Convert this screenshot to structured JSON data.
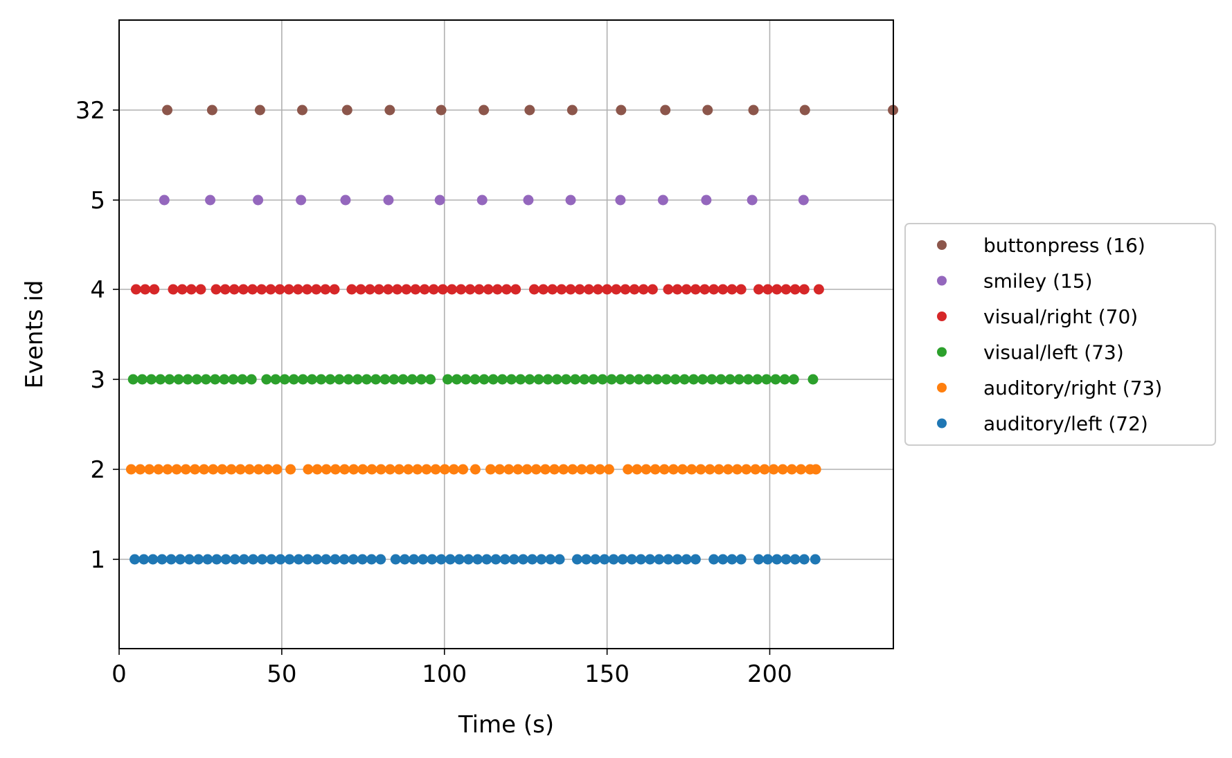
{
  "chart_data": {
    "type": "scatter",
    "title": "",
    "xlabel": "Time (s)",
    "ylabel": "Events id",
    "xlim": [
      0,
      238
    ],
    "xticks": [
      "0",
      "50",
      "100",
      "150",
      "200"
    ],
    "xtick_values": [
      0,
      50,
      100,
      150,
      200
    ],
    "ylevels": [
      "1",
      "2",
      "3",
      "4",
      "5",
      "32"
    ],
    "grid": true,
    "legend": {
      "placement": "right, outside plot"
    },
    "series": [
      {
        "name": "buttonpress (16)",
        "event_id": "32",
        "color": "#8c564b",
        "x": [
          14.8,
          28.6,
          43.3,
          56.3,
          70.1,
          83.2,
          99.0,
          112.1,
          126.2,
          139.3,
          154.3,
          167.9,
          180.9,
          195.0,
          210.8,
          237.9
        ]
      },
      {
        "name": "smiley (15)",
        "event_id": "5",
        "color": "#9467bd",
        "x": [
          13.9,
          28.0,
          42.7,
          55.9,
          69.6,
          82.8,
          98.6,
          111.6,
          125.8,
          138.8,
          154.1,
          167.2,
          180.5,
          194.6,
          210.4
        ]
      },
      {
        "name": "visual/right (70)",
        "event_id": "4",
        "color": "#d62728",
        "x": [
          5.2,
          8.0,
          10.8,
          16.6,
          19.4,
          22.2,
          25.1,
          29.8,
          32.6,
          35.4,
          38.2,
          41.0,
          43.8,
          46.6,
          49.4,
          52.2,
          55.0,
          57.8,
          60.6,
          63.4,
          66.2,
          71.5,
          74.3,
          77.1,
          79.9,
          82.7,
          85.5,
          88.3,
          91.1,
          93.9,
          96.7,
          99.5,
          102.3,
          105.1,
          107.9,
          110.7,
          113.5,
          116.3,
          119.1,
          121.9,
          127.6,
          130.4,
          133.2,
          136.0,
          138.8,
          141.6,
          144.4,
          147.2,
          150.0,
          152.8,
          155.6,
          158.4,
          161.2,
          164.0,
          168.8,
          171.6,
          174.4,
          177.2,
          180.0,
          182.8,
          185.6,
          188.4,
          191.2,
          196.6,
          199.4,
          202.2,
          205.0,
          207.8,
          210.6,
          215.1
        ]
      },
      {
        "name": "visual/left (73)",
        "event_id": "3",
        "color": "#2ca02c",
        "x": [
          4.3,
          7.1,
          9.9,
          12.7,
          15.5,
          18.3,
          21.1,
          23.9,
          26.7,
          29.5,
          32.3,
          35.1,
          37.9,
          40.7,
          45.3,
          48.1,
          50.9,
          53.7,
          56.5,
          59.3,
          62.1,
          64.9,
          67.7,
          70.5,
          73.3,
          76.1,
          78.9,
          81.7,
          84.5,
          87.3,
          90.1,
          92.9,
          95.7,
          101.0,
          103.8,
          106.6,
          109.4,
          112.2,
          115.0,
          117.8,
          120.6,
          123.4,
          126.2,
          129.0,
          131.8,
          134.6,
          137.4,
          140.2,
          143.0,
          145.8,
          148.6,
          151.4,
          154.2,
          157.0,
          159.8,
          162.6,
          165.4,
          168.2,
          171.0,
          173.8,
          176.6,
          179.4,
          182.2,
          185.0,
          187.8,
          190.6,
          193.4,
          196.2,
          199.0,
          201.8,
          204.6,
          207.4,
          213.3
        ]
      },
      {
        "name": "auditory/right (73)",
        "event_id": "2",
        "color": "#ff7f0e",
        "x": [
          3.7,
          6.5,
          9.3,
          12.1,
          14.9,
          17.7,
          20.5,
          23.3,
          26.1,
          28.9,
          31.7,
          34.5,
          37.3,
          40.1,
          42.9,
          45.7,
          48.5,
          52.7,
          58.1,
          60.9,
          63.7,
          66.5,
          69.3,
          72.1,
          74.9,
          77.7,
          80.5,
          83.3,
          86.1,
          88.9,
          91.7,
          94.5,
          97.3,
          100.1,
          102.9,
          105.7,
          109.5,
          114.2,
          117.0,
          119.8,
          122.6,
          125.4,
          128.2,
          131.0,
          133.8,
          136.6,
          139.4,
          142.2,
          145.0,
          147.8,
          150.6,
          156.4,
          159.2,
          162.0,
          164.8,
          167.6,
          170.4,
          173.2,
          176.0,
          178.8,
          181.6,
          184.4,
          187.2,
          190.0,
          192.8,
          195.6,
          198.4,
          201.2,
          204.0,
          206.8,
          209.6,
          212.4,
          214.2
        ]
      },
      {
        "name": "auditory/left (72)",
        "event_id": "1",
        "color": "#1f77b4",
        "x": [
          4.8,
          7.6,
          10.4,
          13.2,
          16.0,
          18.8,
          21.6,
          24.4,
          27.2,
          30.0,
          32.8,
          35.6,
          38.4,
          41.2,
          44.0,
          46.8,
          49.6,
          52.4,
          55.2,
          58.0,
          60.8,
          63.6,
          66.4,
          69.2,
          72.0,
          74.8,
          77.6,
          80.4,
          85.0,
          87.8,
          90.6,
          93.4,
          96.2,
          99.0,
          101.8,
          104.6,
          107.4,
          110.2,
          113.0,
          115.8,
          118.6,
          121.4,
          124.2,
          127.0,
          129.8,
          132.6,
          135.4,
          140.8,
          143.6,
          146.4,
          149.2,
          152.0,
          154.8,
          157.6,
          160.4,
          163.2,
          166.0,
          168.8,
          171.6,
          174.4,
          177.2,
          182.8,
          185.6,
          188.4,
          191.2,
          196.6,
          199.4,
          202.2,
          205.0,
          207.8,
          210.6,
          214.0
        ]
      }
    ]
  }
}
